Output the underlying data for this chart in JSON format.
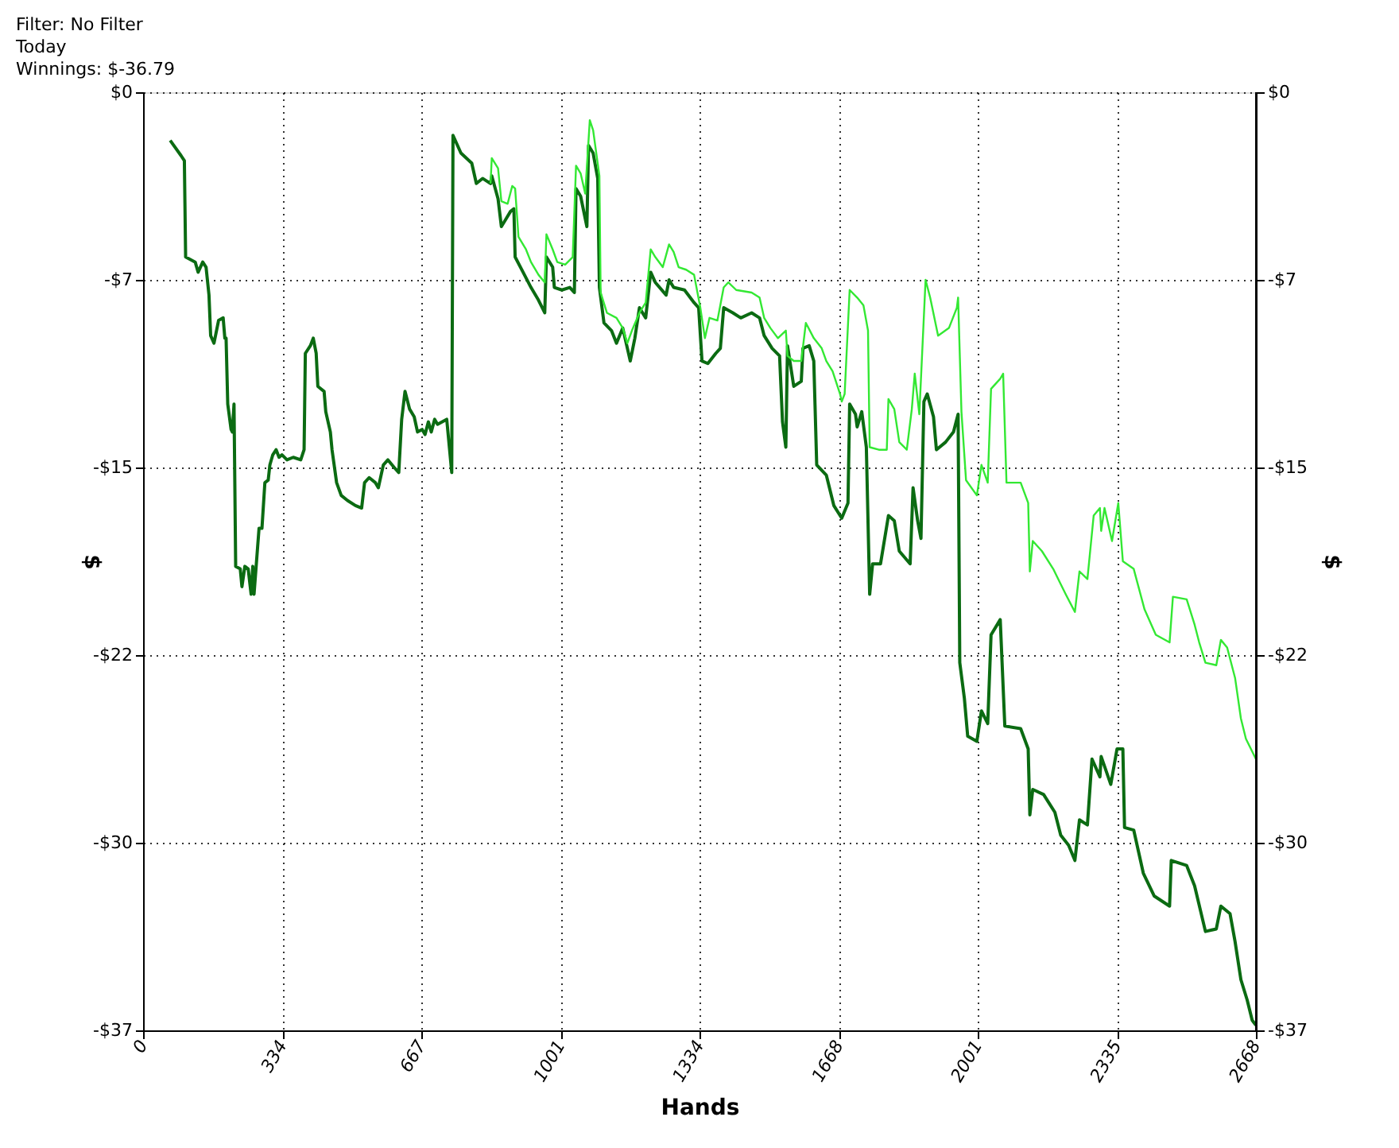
{
  "chart_data": {
    "type": "line",
    "xlabel": "Hands",
    "ylabel": "$",
    "y2label": "$",
    "annotations": [
      "Filter: No Filter",
      "Today",
      "Winnings: $-36.79"
    ],
    "xlim": [
      0,
      2668
    ],
    "xticks": [
      0,
      334,
      667,
      1001,
      1334,
      1668,
      2001,
      2335,
      2668
    ],
    "ylim": [
      -37,
      0
    ],
    "yticks": [
      {
        "value": 0,
        "label": "$0"
      },
      {
        "value": -7.4,
        "label": "-$7"
      },
      {
        "value": -14.8,
        "label": "-$15"
      },
      {
        "value": -22.2,
        "label": "-$22"
      },
      {
        "value": -29.6,
        "label": "-$30"
      },
      {
        "value": -37,
        "label": "-$37"
      }
    ],
    "y2lim": [
      -37,
      0
    ],
    "y2ticks": [
      {
        "value": 0,
        "label": "$0"
      },
      {
        "value": -7.4,
        "label": "-$7"
      },
      {
        "value": -14.8,
        "label": "-$15"
      },
      {
        "value": -22.2,
        "label": "-$22"
      },
      {
        "value": -29.6,
        "label": "-$30"
      },
      {
        "value": -37,
        "label": "-$37"
      }
    ],
    "grid": true,
    "marker": "none",
    "line_style": "solid",
    "series": [
      {
        "color": "#0b6b12",
        "x": [
          65,
          91,
          99,
          102,
          125,
          132,
          143,
          151,
          158,
          162,
          170,
          181,
          192,
          196,
          199,
          203,
          211,
          214,
          218,
          222,
          233,
          237,
          244,
          252,
          259,
          263,
          266,
          278,
          285,
          292,
          300,
          304,
          311,
          319,
          326,
          333,
          345,
          360,
          378,
          386,
          389,
          401,
          408,
          415,
          419,
          434,
          438,
          449,
          453,
          464,
          475,
          490,
          509,
          524,
          531,
          542,
          557,
          564,
          576,
          587,
          602,
          613,
          620,
          628,
          639,
          650,
          658,
          669,
          676,
          684,
          691,
          699,
          706,
          728,
          740,
          743,
          762,
          788,
          799,
          814,
          833,
          836,
          851,
          859,
          870,
          881,
          889,
          892,
          911,
          930,
          948,
          963,
          967,
          982,
          986,
          1004,
          1023,
          1034,
          1038,
          1049,
          1064,
          1068,
          1079,
          1090,
          1094,
          1105,
          1123,
          1135,
          1150,
          1168,
          1179,
          1190,
          1205,
          1217,
          1228,
          1254,
          1261,
          1272,
          1298,
          1321,
          1332,
          1340,
          1354,
          1373,
          1384,
          1392,
          1414,
          1433,
          1459,
          1478,
          1489,
          1508,
          1526,
          1533,
          1541,
          1545,
          1560,
          1578,
          1582,
          1597,
          1608,
          1615,
          1638,
          1656,
          1675,
          1690,
          1694,
          1708,
          1712,
          1723,
          1734,
          1742,
          1749,
          1768,
          1787,
          1801,
          1813,
          1839,
          1846,
          1857,
          1865,
          1872,
          1880,
          1895,
          1902,
          1924,
          1943,
          1954,
          1958,
          1969,
          1977,
          1999,
          2010,
          2025,
          2033,
          2055,
          2066,
          2104,
          2122,
          2126,
          2133,
          2159,
          2186,
          2200,
          2219,
          2234,
          2245,
          2264,
          2275,
          2294,
          2297,
          2320,
          2335,
          2349,
          2353,
          2375,
          2398,
          2424,
          2461,
          2465,
          2502,
          2521,
          2547,
          2573,
          2584,
          2606,
          2618,
          2632,
          2647,
          2659,
          2668
        ],
        "values": [
          -1.9,
          -2.5,
          -2.7,
          -6.5,
          -6.7,
          -7.1,
          -6.7,
          -6.9,
          -8.0,
          -9.6,
          -9.9,
          -9.0,
          -8.9,
          -9.7,
          -9.7,
          -12.3,
          -13.3,
          -13.4,
          -12.3,
          -18.7,
          -18.8,
          -19.5,
          -18.7,
          -18.8,
          -19.8,
          -18.7,
          -19.8,
          -17.2,
          -17.2,
          -15.4,
          -15.3,
          -14.7,
          -14.3,
          -14.1,
          -14.4,
          -14.3,
          -14.5,
          -14.4,
          -14.5,
          -14.1,
          -10.3,
          -10.0,
          -9.7,
          -10.3,
          -11.6,
          -11.8,
          -12.6,
          -13.4,
          -14.1,
          -15.4,
          -15.9,
          -16.1,
          -16.3,
          -16.4,
          -15.4,
          -15.2,
          -15.4,
          -15.6,
          -14.7,
          -14.5,
          -14.8,
          -15.0,
          -12.9,
          -11.8,
          -12.5,
          -12.8,
          -13.4,
          -13.3,
          -13.5,
          -13.0,
          -13.4,
          -12.9,
          -13.1,
          -12.9,
          -15.0,
          -1.7,
          -2.4,
          -2.8,
          -3.6,
          -3.4,
          -3.6,
          -3.3,
          -4.2,
          -5.3,
          -5.0,
          -4.7,
          -4.6,
          -6.5,
          -7.1,
          -7.7,
          -8.2,
          -8.7,
          -6.5,
          -6.9,
          -7.7,
          -7.8,
          -7.7,
          -7.9,
          -3.8,
          -4.1,
          -5.3,
          -2.1,
          -2.4,
          -3.4,
          -7.7,
          -9.1,
          -9.4,
          -9.9,
          -9.3,
          -10.6,
          -9.7,
          -8.5,
          -8.9,
          -7.1,
          -7.5,
          -8.0,
          -7.4,
          -7.7,
          -7.8,
          -8.3,
          -8.5,
          -10.6,
          -10.7,
          -10.3,
          -10.1,
          -8.5,
          -8.7,
          -8.9,
          -8.7,
          -8.9,
          -9.6,
          -10.1,
          -10.4,
          -13.0,
          -14.0,
          -10.0,
          -11.6,
          -11.4,
          -10.1,
          -10.0,
          -10.6,
          -14.7,
          -15.1,
          -16.3,
          -16.8,
          -16.2,
          -12.3,
          -12.7,
          -13.2,
          -12.6,
          -14.0,
          -19.8,
          -18.6,
          -18.6,
          -16.7,
          -16.9,
          -18.1,
          -18.6,
          -15.6,
          -16.9,
          -17.6,
          -12.2,
          -11.9,
          -12.8,
          -14.1,
          -13.8,
          -13.4,
          -12.7,
          -22.5,
          -23.9,
          -25.4,
          -25.6,
          -24.4,
          -24.9,
          -21.4,
          -20.8,
          -25.0,
          -25.1,
          -25.9,
          -28.5,
          -27.5,
          -27.7,
          -28.4,
          -29.3,
          -29.7,
          -30.3,
          -28.7,
          -28.9,
          -26.3,
          -27.0,
          -26.2,
          -27.3,
          -25.9,
          -25.9,
          -29.0,
          -29.1,
          -30.8,
          -31.7,
          -32.1,
          -30.3,
          -30.5,
          -31.3,
          -33.1,
          -33.0,
          -32.1,
          -32.4,
          -33.5,
          -35.0,
          -35.8,
          -36.6,
          -36.8
        ]
      },
      {
        "color": "#33e833",
        "x": [
          833,
          836,
          851,
          859,
          874,
          885,
          892,
          900,
          918,
          930,
          948,
          963,
          967,
          982,
          993,
          1012,
          1030,
          1038,
          1049,
          1060,
          1071,
          1079,
          1094,
          1097,
          1112,
          1135,
          1150,
          1161,
          1172,
          1190,
          1205,
          1217,
          1228,
          1246,
          1261,
          1272,
          1284,
          1302,
          1321,
          1336,
          1347,
          1358,
          1377,
          1392,
          1403,
          1422,
          1459,
          1478,
          1489,
          1504,
          1522,
          1541,
          1545,
          1560,
          1578,
          1589,
          1608,
          1627,
          1638,
          1653,
          1671,
          1675,
          1682,
          1694,
          1712,
          1727,
          1738,
          1742,
          1764,
          1783,
          1787,
          1801,
          1813,
          1831,
          1843,
          1850,
          1861,
          1876,
          1887,
          1906,
          1932,
          1951,
          1954,
          1962,
          1973,
          1999,
          2010,
          2025,
          2033,
          2055,
          2062,
          2070,
          2104,
          2122,
          2126,
          2133,
          2155,
          2182,
          2200,
          2212,
          2234,
          2245,
          2264,
          2279,
          2294,
          2297,
          2305,
          2323,
          2338,
          2349,
          2375,
          2401,
          2428,
          2461,
          2469,
          2502,
          2521,
          2532,
          2547,
          2573,
          2584,
          2599,
          2618,
          2632,
          2644,
          2668
        ],
        "values": [
          -3.6,
          -2.6,
          -3.0,
          -4.3,
          -4.4,
          -3.7,
          -3.8,
          -5.7,
          -6.2,
          -6.7,
          -7.2,
          -7.5,
          -5.6,
          -6.2,
          -6.7,
          -6.8,
          -6.5,
          -2.9,
          -3.2,
          -4.0,
          -1.1,
          -1.5,
          -3.3,
          -7.9,
          -8.7,
          -8.9,
          -9.3,
          -9.9,
          -9.4,
          -8.7,
          -8.3,
          -6.2,
          -6.5,
          -6.9,
          -6.0,
          -6.3,
          -6.9,
          -7.0,
          -7.2,
          -8.5,
          -9.7,
          -8.9,
          -9.0,
          -7.7,
          -7.5,
          -7.8,
          -7.9,
          -8.1,
          -8.9,
          -9.3,
          -9.7,
          -9.4,
          -10.4,
          -10.6,
          -10.6,
          -9.1,
          -9.7,
          -10.1,
          -10.6,
          -11.0,
          -11.9,
          -12.2,
          -11.9,
          -7.8,
          -8.1,
          -8.4,
          -9.4,
          -14.0,
          -14.1,
          -14.1,
          -12.1,
          -12.5,
          -13.8,
          -14.1,
          -12.5,
          -11.1,
          -12.7,
          -7.4,
          -8.1,
          -9.6,
          -9.3,
          -8.5,
          -8.1,
          -12.6,
          -15.3,
          -15.9,
          -14.7,
          -15.4,
          -11.7,
          -11.3,
          -11.1,
          -15.4,
          -15.4,
          -16.2,
          -18.9,
          -17.7,
          -18.1,
          -18.8,
          -19.4,
          -19.8,
          -20.5,
          -18.9,
          -19.2,
          -16.7,
          -16.4,
          -17.3,
          -16.4,
          -17.7,
          -16.2,
          -18.5,
          -18.8,
          -20.4,
          -21.4,
          -21.7,
          -19.9,
          -20.0,
          -21.0,
          -21.7,
          -22.5,
          -22.6,
          -21.6,
          -21.9,
          -23.1,
          -24.7,
          -25.5,
          -26.3
        ]
      }
    ]
  }
}
